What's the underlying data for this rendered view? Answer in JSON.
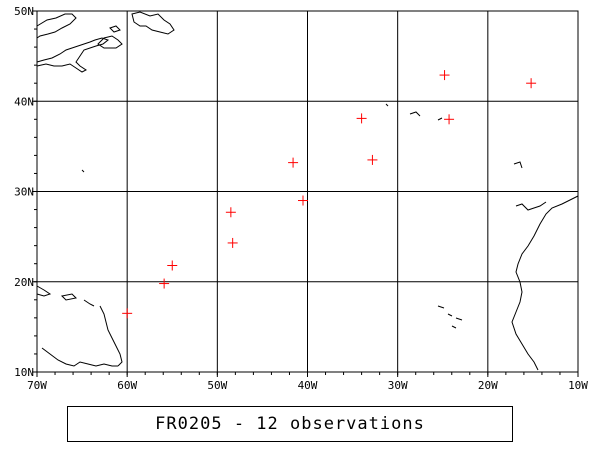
{
  "caption": "FR0205 - 12 observations",
  "map": {
    "lon_range": [
      -70,
      -10
    ],
    "lat_range": [
      10,
      50
    ],
    "grid": true,
    "lon_ticks": [
      {
        "value": -70,
        "label": "70W"
      },
      {
        "value": -60,
        "label": "60W"
      },
      {
        "value": -50,
        "label": "50W"
      },
      {
        "value": -40,
        "label": "40W"
      },
      {
        "value": -30,
        "label": "30W"
      },
      {
        "value": -20,
        "label": "20W"
      },
      {
        "value": -10,
        "label": "10W"
      }
    ],
    "lat_ticks": [
      {
        "value": 10,
        "label": "10N"
      },
      {
        "value": 20,
        "label": "20N"
      },
      {
        "value": 30,
        "label": "30N"
      },
      {
        "value": 40,
        "label": "40N"
      },
      {
        "value": 50,
        "label": "50N"
      }
    ],
    "marker_color": "#ff0000",
    "line_color": "#000000"
  },
  "chart_data": {
    "type": "scatter",
    "x": [
      -60.0,
      -55.9,
      -55.0,
      -48.3,
      -48.5,
      -41.6,
      -40.5,
      -34.0,
      -32.8,
      -24.8,
      -24.3,
      -15.2
    ],
    "y": [
      16.5,
      19.8,
      21.8,
      24.3,
      27.7,
      33.2,
      29.0,
      38.1,
      33.5,
      42.9,
      38.0,
      42.0
    ],
    "xlim": [
      -70,
      -10
    ],
    "ylim": [
      10,
      50
    ],
    "grid": true
  }
}
